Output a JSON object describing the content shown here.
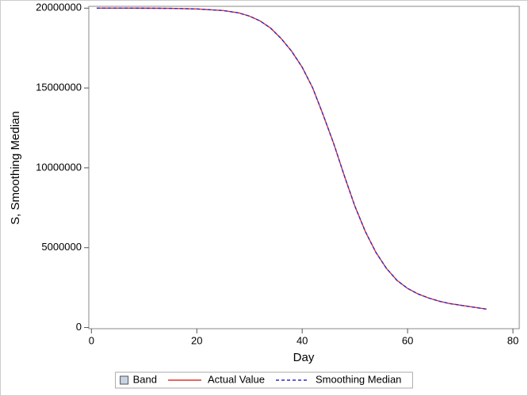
{
  "chart_data": {
    "type": "line",
    "xlabel": "Day",
    "ylabel": "S, Smoothing Median",
    "x": [
      1,
      5,
      10,
      15,
      20,
      25,
      28,
      30,
      32,
      34,
      36,
      38,
      40,
      42,
      44,
      46,
      48,
      50,
      52,
      54,
      56,
      58,
      60,
      62,
      64,
      66,
      68,
      70,
      72,
      75
    ],
    "series": [
      {
        "name": "Band",
        "color": "#c8d4e2",
        "kind": "band"
      },
      {
        "name": "Actual Value",
        "color": "#e8302a",
        "dash": false,
        "values": [
          20000000,
          19999000,
          19995000,
          19985000,
          19950000,
          19850000,
          19700000,
          19500000,
          19200000,
          18750000,
          18100000,
          17300000,
          16300000,
          15000000,
          13300000,
          11500000,
          9500000,
          7600000,
          6000000,
          4700000,
          3700000,
          2950000,
          2450000,
          2100000,
          1850000,
          1650000,
          1500000,
          1400000,
          1300000,
          1150000
        ]
      },
      {
        "name": "Smoothing Median",
        "color": "#2a2ad0",
        "dash": true,
        "values": [
          20000000,
          19999000,
          19995000,
          19985000,
          19950000,
          19850000,
          19700000,
          19500000,
          19200000,
          18750000,
          18100000,
          17300000,
          16300000,
          15000000,
          13300000,
          11500000,
          9500000,
          7600000,
          6000000,
          4700000,
          3700000,
          2950000,
          2450000,
          2100000,
          1850000,
          1650000,
          1500000,
          1400000,
          1300000,
          1150000
        ]
      }
    ],
    "xlim": [
      -0.5,
      81.2
    ],
    "xticks": [
      0,
      20,
      40,
      60,
      80
    ],
    "ylim": [
      -72000,
      20113000
    ],
    "yticks": [
      0,
      5000000,
      10000000,
      15000000,
      20000000
    ],
    "legend": "bottom"
  }
}
